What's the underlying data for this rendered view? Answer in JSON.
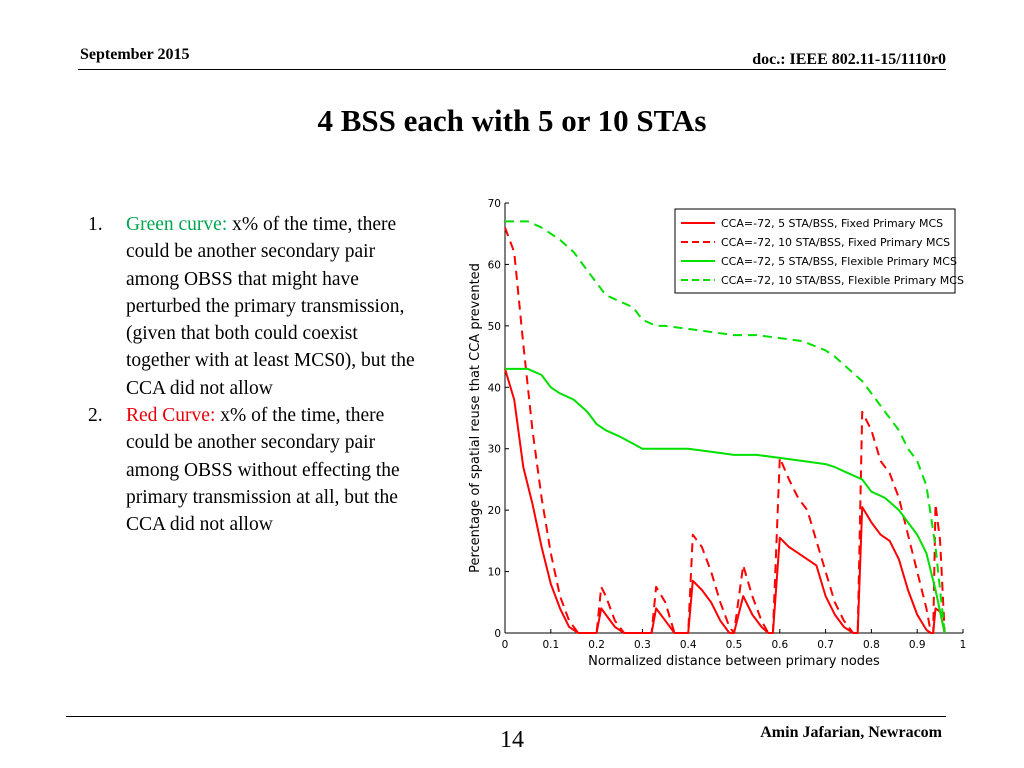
{
  "header": {
    "date": "September 2015",
    "doc": "doc.: IEEE 802.11-15/1110r0"
  },
  "title": "4 BSS each with 5 or 10 STAs",
  "notes": [
    {
      "number": "1.",
      "label": "Green curve:",
      "text": " x% of the time, there could be another secondary pair among OBSS that might have perturbed the primary transmission, (given that both could coexist together with at least MCS0), but the CCA did not allow",
      "color": "#00a550"
    },
    {
      "number": "2.",
      "label": "Red Curve:",
      "text": " x% of the time, there could be another secondary pair among OBSS without  effecting the primary transmission at all, but the CCA did not allow",
      "color": "#e8000b"
    }
  ],
  "footer": {
    "page": "14",
    "author": "Amin Jafarian, Newracom"
  },
  "chart_data": {
    "type": "line",
    "xlabel": "Normalized distance between primary nodes",
    "ylabel": "Percentage of spatial reuse that CCA prevented",
    "xlim": [
      0,
      1
    ],
    "ylim": [
      0,
      70
    ],
    "xticks": [
      "0",
      "0.1",
      "0.2",
      "0.3",
      "0.4",
      "0.5",
      "0.6",
      "0.7",
      "0.8",
      "0.9",
      "1"
    ],
    "yticks": [
      "0",
      "10",
      "20",
      "30",
      "40",
      "50",
      "60",
      "70"
    ],
    "legend_position": "top-right",
    "grid": false,
    "series": [
      {
        "name": "CCA=-72, 5 STA/BSS, Fixed Primary MCS",
        "color": "#ff0000",
        "dash": "solid",
        "x": [
          0,
          0.02,
          0.04,
          0.06,
          0.08,
          0.1,
          0.12,
          0.14,
          0.16,
          0.18,
          0.19,
          0.2,
          0.21,
          0.22,
          0.24,
          0.26,
          0.28,
          0.3,
          0.31,
          0.32,
          0.33,
          0.35,
          0.37,
          0.39,
          0.4,
          0.41,
          0.43,
          0.45,
          0.47,
          0.49,
          0.5,
          0.52,
          0.54,
          0.56,
          0.575,
          0.585,
          0.6,
          0.62,
          0.64,
          0.66,
          0.68,
          0.7,
          0.72,
          0.74,
          0.76,
          0.77,
          0.78,
          0.8,
          0.82,
          0.84,
          0.86,
          0.88,
          0.9,
          0.92,
          0.93,
          0.935,
          0.94,
          0.95,
          0.96
        ],
        "y": [
          43,
          38,
          27,
          21,
          14,
          8,
          4,
          1,
          0,
          0,
          0,
          0,
          4,
          3,
          1,
          0,
          0,
          0,
          0,
          0,
          4,
          2,
          0,
          0,
          0,
          8.5,
          7,
          5,
          2,
          0,
          0,
          6,
          3,
          1,
          0,
          0,
          15.5,
          14,
          13,
          12,
          11,
          6,
          3,
          1,
          0,
          0,
          20.5,
          18,
          16,
          15,
          12,
          7,
          3,
          0.5,
          0,
          0,
          4,
          3.5,
          0
        ]
      },
      {
        "name": "CCA=-72, 10 STA/BSS, Fixed Primary MCS",
        "color": "#ff0000",
        "dash": "dashed",
        "x": [
          0,
          0.02,
          0.04,
          0.06,
          0.08,
          0.1,
          0.12,
          0.14,
          0.16,
          0.18,
          0.19,
          0.2,
          0.21,
          0.22,
          0.24,
          0.26,
          0.28,
          0.3,
          0.31,
          0.32,
          0.33,
          0.35,
          0.37,
          0.39,
          0.4,
          0.41,
          0.43,
          0.45,
          0.47,
          0.49,
          0.5,
          0.52,
          0.54,
          0.56,
          0.575,
          0.585,
          0.6,
          0.62,
          0.64,
          0.66,
          0.68,
          0.7,
          0.72,
          0.74,
          0.76,
          0.77,
          0.78,
          0.8,
          0.82,
          0.84,
          0.86,
          0.88,
          0.9,
          0.92,
          0.93,
          0.935,
          0.94,
          0.95,
          0.96
        ],
        "y": [
          66,
          62,
          47,
          33,
          22,
          13,
          6,
          2,
          0,
          0,
          0,
          0,
          7.5,
          6,
          2,
          0,
          0,
          0,
          0,
          0,
          7.5,
          5,
          0,
          0,
          0,
          16,
          14,
          10,
          5,
          1,
          0,
          11,
          6,
          2,
          0,
          0,
          28.5,
          25,
          22,
          20,
          15,
          10,
          5,
          2,
          0,
          0,
          36,
          33,
          28,
          26,
          22,
          16,
          10,
          4,
          0,
          0,
          21,
          15,
          0
        ]
      },
      {
        "name": "CCA=-72, 5 STA/BSS, Flexible Primary MCS",
        "color": "#00e000",
        "dash": "solid",
        "x": [
          0,
          0.02,
          0.05,
          0.08,
          0.1,
          0.12,
          0.15,
          0.18,
          0.2,
          0.22,
          0.25,
          0.3,
          0.35,
          0.4,
          0.45,
          0.5,
          0.55,
          0.6,
          0.65,
          0.7,
          0.72,
          0.75,
          0.78,
          0.8,
          0.83,
          0.86,
          0.88,
          0.9,
          0.92,
          0.94,
          0.96
        ],
        "y": [
          43,
          43,
          43,
          42,
          40,
          39,
          38,
          36,
          34,
          33,
          32,
          30,
          30,
          30,
          29.5,
          29,
          29,
          28.5,
          28,
          27.5,
          27,
          26,
          25,
          23,
          22,
          20,
          18,
          16,
          13,
          7,
          0
        ]
      },
      {
        "name": "CCA=-72, 10 STA/BSS, Flexible Primary MCS",
        "color": "#00e000",
        "dash": "dashed",
        "x": [
          0,
          0.02,
          0.05,
          0.08,
          0.1,
          0.12,
          0.15,
          0.18,
          0.2,
          0.22,
          0.25,
          0.28,
          0.3,
          0.33,
          0.35,
          0.4,
          0.45,
          0.5,
          0.55,
          0.6,
          0.65,
          0.7,
          0.72,
          0.75,
          0.78,
          0.8,
          0.83,
          0.86,
          0.88,
          0.9,
          0.92,
          0.94,
          0.96
        ],
        "y": [
          67,
          67,
          67,
          66,
          65,
          64,
          62,
          59,
          57,
          55,
          54,
          53,
          51,
          50,
          50,
          49.5,
          49,
          48.5,
          48.5,
          48,
          47.5,
          46,
          45,
          43,
          41,
          39,
          36,
          33,
          30,
          28,
          24,
          14,
          0
        ]
      }
    ]
  }
}
